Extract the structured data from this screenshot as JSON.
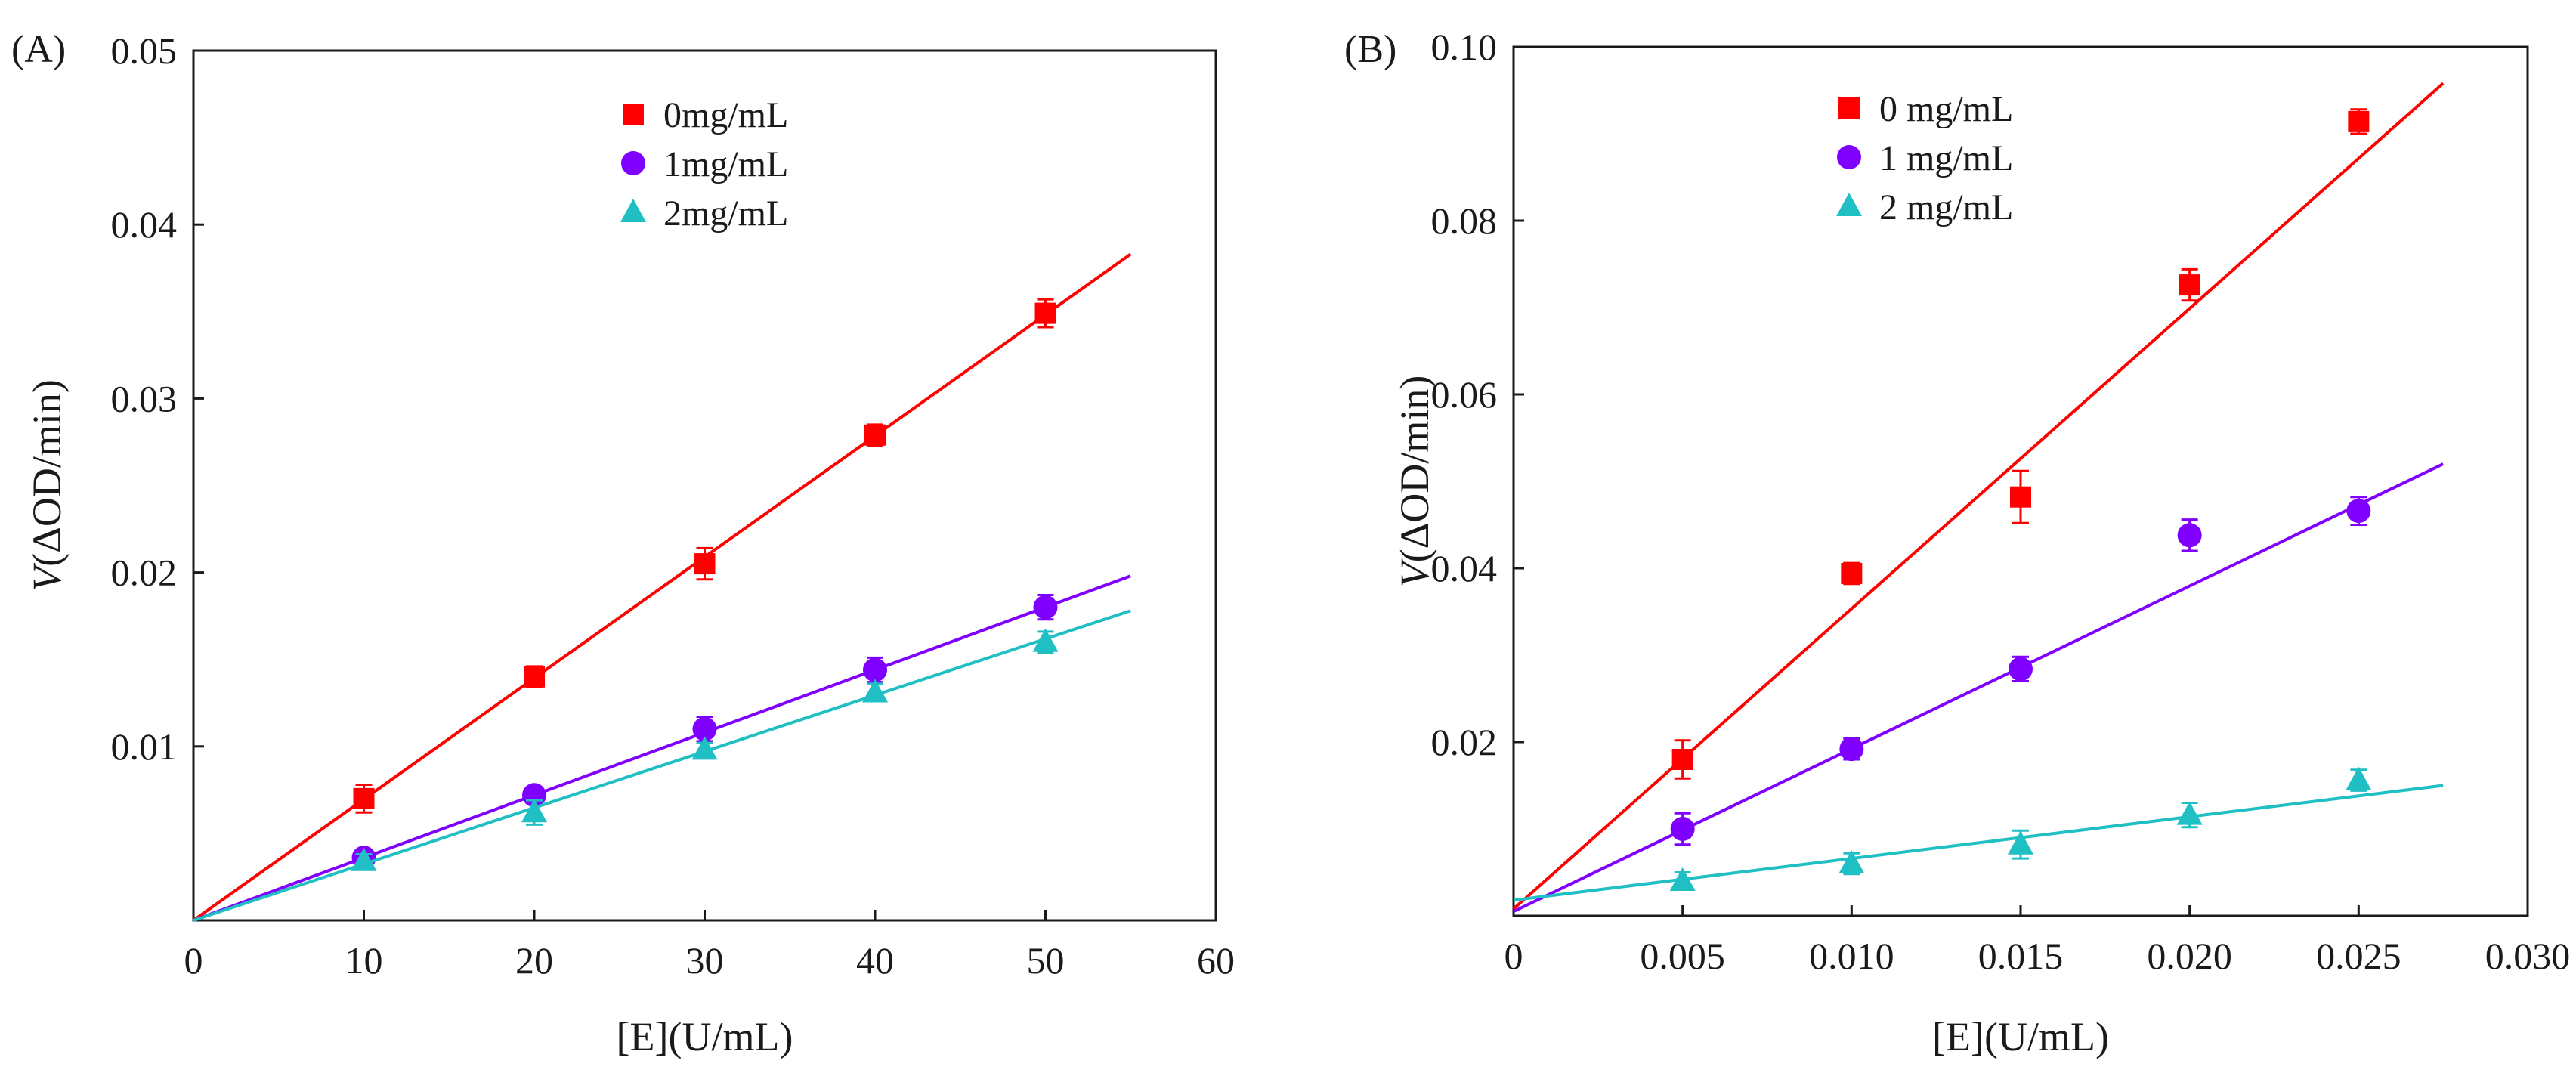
{
  "chart_data": [
    {
      "type": "scatter",
      "panel_label": "(A)",
      "title": "",
      "xlabel": "[E](U/mL)",
      "ylabel_italic": "V",
      "ylabel_rest": "(ΔOD/min)",
      "xlim": [
        0,
        60
      ],
      "ylim": [
        0,
        0.05
      ],
      "xticks": [
        0,
        10,
        20,
        30,
        40,
        50,
        60
      ],
      "xtick_labels": [
        "0",
        "10",
        "20",
        "30",
        "40",
        "50",
        "60"
      ],
      "yticks": [
        0.01,
        0.02,
        0.03,
        0.04,
        0.05
      ],
      "ytick_labels": [
        "0.01",
        "0.02",
        "0.03",
        "0.04",
        "0.05"
      ],
      "grid": false,
      "legend_position": "top-center",
      "series": [
        {
          "name": "0mg/mL",
          "marker": "square",
          "color": "#ff0000",
          "x": [
            10,
            20,
            30,
            40,
            50
          ],
          "y": [
            0.007,
            0.014,
            0.0205,
            0.0279,
            0.0349
          ],
          "err": [
            0.0008,
            0.0006,
            0.0009,
            0.0006,
            0.0008
          ],
          "fit": {
            "x0": 0,
            "y0": 0,
            "x1": 55,
            "y1": 0.0383
          }
        },
        {
          "name": "1mg/mL",
          "marker": "circle",
          "color": "#8000ff",
          "x": [
            10,
            20,
            30,
            40,
            50
          ],
          "y": [
            0.0036,
            0.0072,
            0.011,
            0.0144,
            0.018
          ],
          "err": [
            0.0004,
            0.0004,
            0.0007,
            0.0007,
            0.0007
          ],
          "fit": {
            "x0": 0,
            "y0": 0,
            "x1": 55,
            "y1": 0.0198
          }
        },
        {
          "name": "2mg/mL",
          "marker": "triangle",
          "color": "#1fbfc3",
          "x": [
            10,
            20,
            30,
            40,
            50
          ],
          "y": [
            0.0034,
            0.0062,
            0.0098,
            0.0131,
            0.016
          ],
          "err": [
            0.0004,
            0.0007,
            0.0004,
            0.0005,
            0.0006
          ],
          "fit": {
            "x0": 0,
            "y0": 0,
            "x1": 55,
            "y1": 0.0178
          }
        }
      ]
    },
    {
      "type": "scatter",
      "panel_label": "(B)",
      "title": "",
      "xlabel": "[E](U/mL)",
      "ylabel_italic": "V",
      "ylabel_rest": "(ΔOD/min)",
      "xlim": [
        0,
        0.03
      ],
      "ylim": [
        0,
        0.1
      ],
      "xticks": [
        0,
        0.005,
        0.01,
        0.015,
        0.02,
        0.025,
        0.03
      ],
      "xtick_labels": [
        "0",
        "0.005",
        "0.010",
        "0.015",
        "0.020",
        "0.025",
        "0.030"
      ],
      "yticks": [
        0.02,
        0.04,
        0.06,
        0.08,
        0.1
      ],
      "ytick_labels": [
        "0.02",
        "0.04",
        "0.06",
        "0.08",
        "0.10"
      ],
      "grid": false,
      "legend_position": "top-center",
      "series": [
        {
          "name": "0 mg/mL",
          "marker": "square",
          "color": "#ff0000",
          "x": [
            0.005,
            0.01,
            0.015,
            0.02,
            0.025
          ],
          "y": [
            0.018,
            0.0394,
            0.0482,
            0.0726,
            0.0914
          ],
          "err": [
            0.0022,
            0.0012,
            0.003,
            0.0018,
            0.0014
          ],
          "fit": {
            "x0": 0,
            "y0": 0.0008,
            "x1": 0.0275,
            "y1": 0.0958
          }
        },
        {
          "name": "1 mg/mL",
          "marker": "circle",
          "color": "#8000ff",
          "x": [
            0.005,
            0.01,
            0.015,
            0.02,
            0.025
          ],
          "y": [
            0.01,
            0.0192,
            0.0284,
            0.0438,
            0.0466
          ],
          "err": [
            0.0018,
            0.0012,
            0.0014,
            0.0018,
            0.0016
          ],
          "fit": {
            "x0": 0,
            "y0": 0.0005,
            "x1": 0.0275,
            "y1": 0.052
          }
        },
        {
          "name": "2 mg/mL",
          "marker": "triangle",
          "color": "#1fbfc3",
          "x": [
            0.005,
            0.01,
            0.015,
            0.02,
            0.025
          ],
          "y": [
            0.004,
            0.006,
            0.0082,
            0.0116,
            0.0156
          ],
          "err": [
            0.001,
            0.0012,
            0.0016,
            0.0014,
            0.0012
          ],
          "fit": {
            "x0": 0,
            "y0": 0.0018,
            "x1": 0.0275,
            "y1": 0.015
          }
        }
      ]
    }
  ]
}
